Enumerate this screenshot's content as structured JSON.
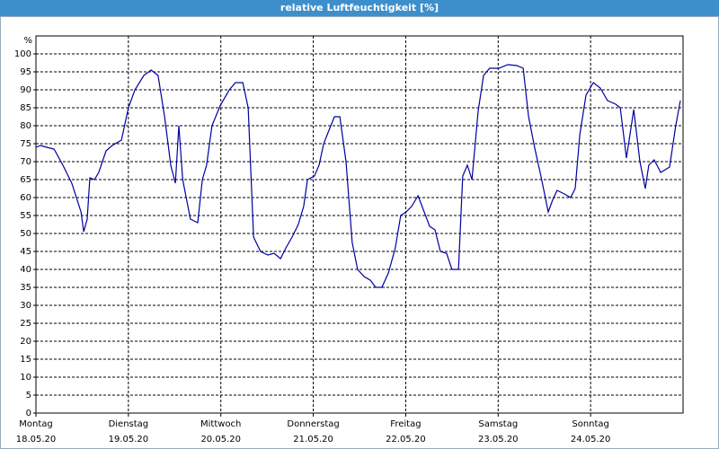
{
  "chart_data": {
    "type": "line",
    "title": "relative Luftfeuchtigkeit [%]",
    "y_unit_label": "%",
    "xlim": [
      0,
      168
    ],
    "xticks": [
      {
        "value": 0,
        "label": "Montag\n18.05.20"
      },
      {
        "value": 24,
        "label": "Dienstag\n19.05.20"
      },
      {
        "value": 48,
        "label": "Mittwoch\n20.05.20"
      },
      {
        "value": 72,
        "label": "Donnerstag\n21.05.20"
      },
      {
        "value": 96,
        "label": "Freitag\n22.05.20"
      },
      {
        "value": 120,
        "label": "Samstag\n23.05.20"
      },
      {
        "value": 144,
        "label": "Sonntag\n24.05.20"
      }
    ],
    "ylim": [
      0,
      105
    ],
    "yticks": [
      0,
      5,
      10,
      15,
      20,
      25,
      30,
      35,
      40,
      45,
      50,
      55,
      60,
      65,
      70,
      75,
      80,
      85,
      90,
      95,
      100
    ],
    "grid": true,
    "series": [
      {
        "color": "#0000a0",
        "x": [
          0,
          1.2,
          2.8,
          4.7,
          7,
          9.3,
          11.7,
          12.4,
          13.3,
          14,
          15.2,
          16.3,
          18.2,
          19.8,
          22.2,
          24,
          25.7,
          28,
          29.9,
          31.7,
          33.4,
          35,
          36.2,
          37.1,
          38.1,
          40.1,
          42,
          43.2,
          44.3,
          45.7,
          47.8,
          50.2,
          51.8,
          53.7,
          55.1,
          56.5,
          58.3,
          60.2,
          61.8,
          63.5,
          64.9,
          66.5,
          68.1,
          69.5,
          70.5,
          72.3,
          73.5,
          74.7,
          75.8,
          77.5,
          78.9,
          80.5,
          82.1,
          83.5,
          85.2,
          86.8,
          88.2,
          89.8,
          91.5,
          93.3,
          94.7,
          96.1,
          97.5,
          99.2,
          100.8,
          102.2,
          103.6,
          105,
          106.6,
          108,
          109.7,
          110.8,
          112,
          113.2,
          114.8,
          116.2,
          117.8,
          120.2,
          122.5,
          124.8,
          126.5,
          127.9,
          129.5,
          131.1,
          133,
          134.2,
          135.3,
          137.2,
          138.8,
          140,
          141.2,
          142.8,
          144.7,
          146.5,
          148.4,
          150.5,
          151.7,
          153.3,
          155.2,
          156.8,
          158.2,
          159.1,
          160.5,
          162.2,
          164.5,
          166.1,
          167.3
        ],
        "values": [
          74,
          74.5,
          74,
          73.5,
          69,
          64,
          56,
          50.5,
          54,
          65.5,
          65,
          67,
          73,
          74.5,
          76,
          85,
          90,
          94,
          95.5,
          94,
          82.5,
          69,
          64,
          80,
          65,
          54,
          53,
          65,
          69,
          80,
          85.5,
          90,
          92,
          92,
          85,
          49,
          45,
          44,
          44.5,
          43,
          46,
          49,
          52.5,
          57.5,
          65,
          66,
          69,
          75,
          78,
          82.5,
          82.5,
          70,
          47.5,
          40,
          38,
          37,
          35,
          35,
          39,
          46,
          55,
          56,
          57.5,
          60.5,
          56,
          52,
          51,
          45,
          44.5,
          40,
          40,
          66,
          69,
          65,
          84,
          94,
          96,
          96,
          97,
          96.75,
          96,
          82.5,
          73.75,
          66,
          56,
          59.5,
          62,
          61,
          60,
          62.5,
          77.5,
          88.5,
          92,
          90.5,
          87,
          86,
          85,
          71,
          84.5,
          70,
          62.5,
          69,
          70.5,
          67,
          68.5,
          80,
          87
        ]
      }
    ]
  }
}
